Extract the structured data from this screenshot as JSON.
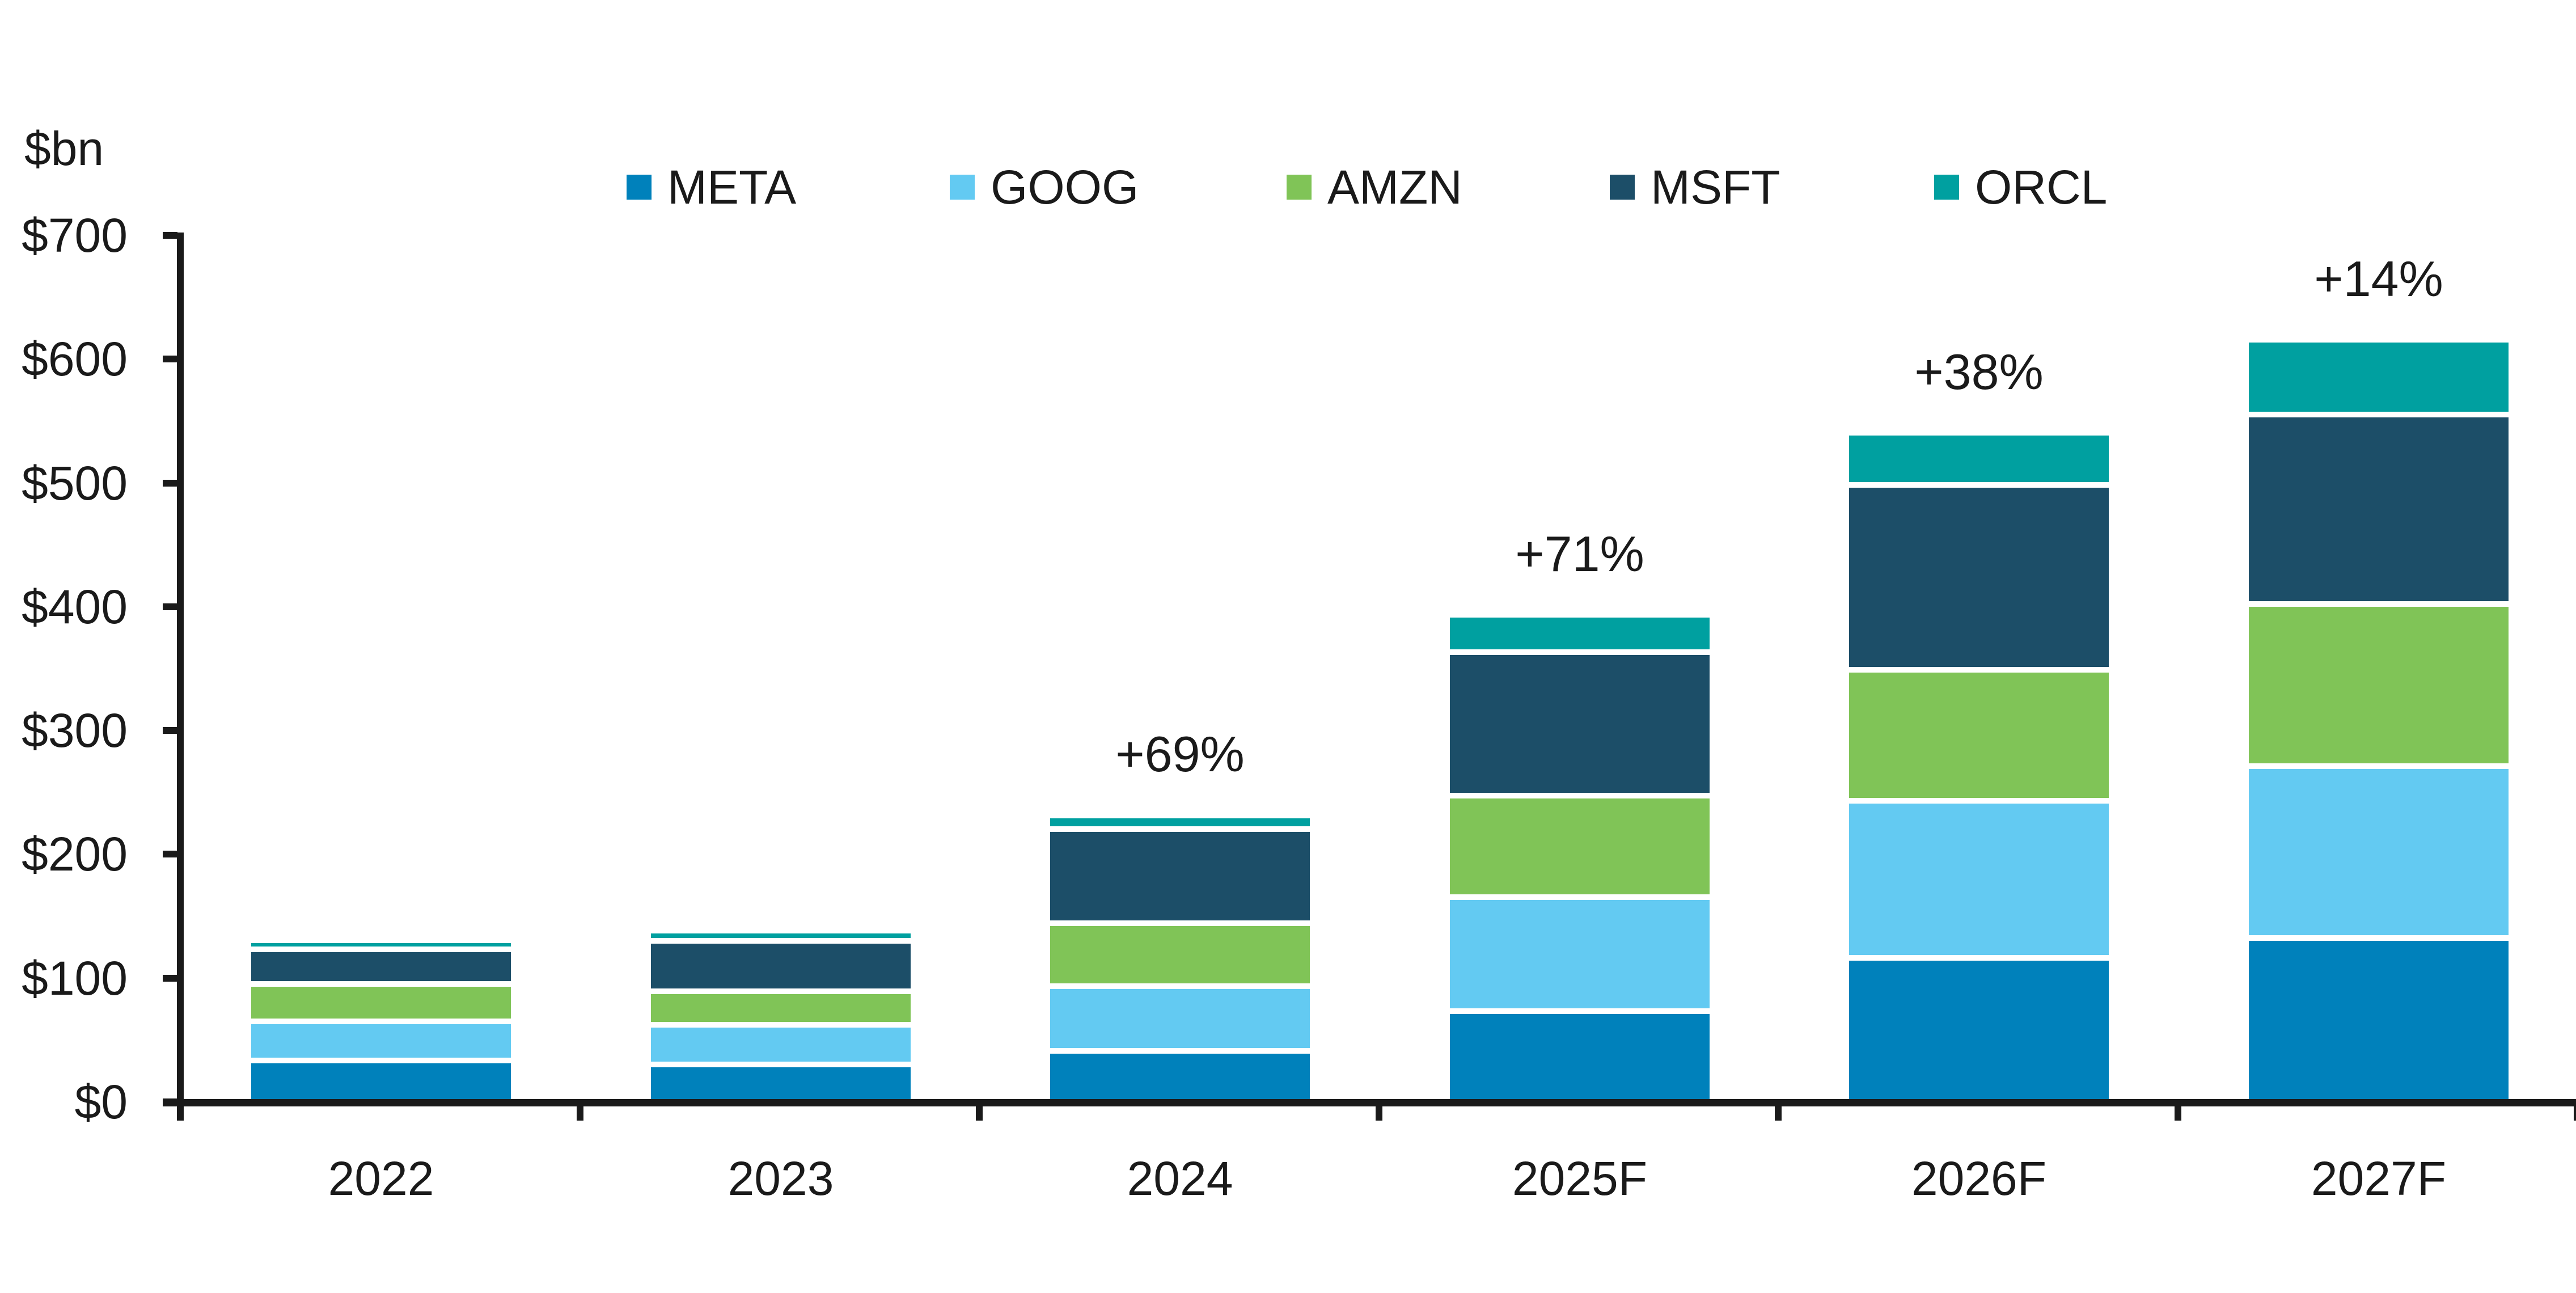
{
  "unit_label": "$bn",
  "legend_items": [
    "META",
    "GOOG",
    "AMZN",
    "MSFT",
    "ORCL"
  ],
  "chart_data": {
    "type": "bar",
    "stacked": true,
    "title": "",
    "ylabel": "$bn",
    "xlabel": "",
    "ylim": [
      0,
      700
    ],
    "ytick_step": 100,
    "y_tick_labels": [
      "$0",
      "$100",
      "$200",
      "$300",
      "$400",
      "$500",
      "$600",
      "$700"
    ],
    "grid": false,
    "legend_position": "top",
    "categories": [
      "2022",
      "2023",
      "2024",
      "2025F",
      "2026F",
      "2027F"
    ],
    "series": [
      {
        "name": "META",
        "color": "#0081BB",
        "values": [
          31,
          28,
          39,
          71,
          114,
          130
        ]
      },
      {
        "name": "GOOG",
        "color": "#63CAF2",
        "values": [
          32,
          32,
          52,
          92,
          127,
          139
        ]
      },
      {
        "name": "AMZN",
        "color": "#80C457",
        "values": [
          30,
          27,
          51,
          82,
          106,
          131
        ]
      },
      {
        "name": "MSFT",
        "color": "#1C4E68",
        "values": [
          28,
          41,
          76,
          116,
          149,
          153
        ]
      },
      {
        "name": "ORCL",
        "color": "#00A0A0",
        "values": [
          5,
          6,
          9,
          28,
          40,
          58
        ]
      }
    ],
    "totals": [
      126,
      134,
      227,
      389,
      536,
      611
    ],
    "annotations": [
      {
        "category": "2024",
        "text": "+69%"
      },
      {
        "category": "2025F",
        "text": "+71%"
      },
      {
        "category": "2026F",
        "text": "+38%"
      },
      {
        "category": "2027F",
        "text": "+14%"
      }
    ],
    "axis_color": "#1a1a1a",
    "text_color": "#1a1a1a",
    "background_color": "#ffffff"
  }
}
